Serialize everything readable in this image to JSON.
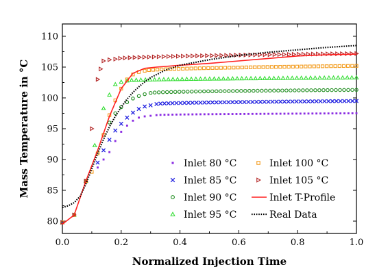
{
  "chart_data": {
    "type": "scatter",
    "xlabel": "Normalized Injection Time",
    "ylabel": "Mass Temperature in °C",
    "xlim": [
      0,
      1
    ],
    "ylim": [
      78,
      112
    ],
    "xticks": [
      0.0,
      0.2,
      0.4,
      0.6,
      0.8,
      1.0
    ],
    "xtick_labels": [
      "0.0",
      "0.2",
      "0.4",
      "0.6",
      "0.8",
      "1.0"
    ],
    "yticks": [
      80,
      85,
      90,
      95,
      100,
      105,
      110
    ],
    "ytick_labels": [
      "80",
      "85",
      "90",
      "95",
      "100",
      "105",
      "110"
    ],
    "grid": false,
    "legend_placement": "bottom-right",
    "series": [
      {
        "name": "Inlet 80 °C",
        "kind": "marker",
        "marker": "asterisk",
        "color": "#8a2be2",
        "points": [
          [
            0.0,
            79.8
          ],
          [
            0.04,
            81.0
          ],
          [
            0.08,
            86.5
          ],
          [
            0.12,
            88.7
          ],
          [
            0.14,
            90.0
          ],
          [
            0.16,
            91.2
          ],
          [
            0.18,
            93.0
          ],
          [
            0.2,
            94.5
          ],
          [
            0.22,
            95.5
          ],
          [
            0.24,
            96.3
          ],
          [
            0.26,
            96.8
          ],
          [
            0.28,
            97.0
          ],
          [
            0.3,
            97.1
          ],
          [
            0.32,
            97.2
          ]
        ],
        "plateau": {
          "x0": 0.32,
          "x1": 1.0,
          "y0": 97.2,
          "y1": 97.5
        }
      },
      {
        "name": "Inlet 85 °C",
        "kind": "marker",
        "marker": "x",
        "color": "#1f1fe0",
        "points": [
          [
            0.0,
            79.8
          ],
          [
            0.04,
            81.0
          ],
          [
            0.08,
            86.5
          ],
          [
            0.12,
            89.5
          ],
          [
            0.14,
            91.5
          ],
          [
            0.16,
            93.2
          ],
          [
            0.18,
            94.7
          ],
          [
            0.2,
            95.8
          ],
          [
            0.22,
            96.8
          ],
          [
            0.24,
            97.6
          ],
          [
            0.26,
            98.2
          ],
          [
            0.28,
            98.6
          ],
          [
            0.3,
            98.8
          ],
          [
            0.32,
            99.0
          ]
        ],
        "plateau": {
          "x0": 0.32,
          "x1": 1.0,
          "y0": 99.0,
          "y1": 99.5
        }
      },
      {
        "name": "Inlet 90 °C",
        "kind": "marker",
        "marker": "circle",
        "color": "#1e8c1e",
        "points": [
          [
            0.0,
            79.8
          ],
          [
            0.04,
            81.0
          ],
          [
            0.08,
            86.5
          ],
          [
            0.12,
            91.0
          ],
          [
            0.14,
            94.0
          ],
          [
            0.16,
            96.0
          ],
          [
            0.18,
            97.5
          ],
          [
            0.2,
            98.5
          ],
          [
            0.22,
            99.3
          ],
          [
            0.24,
            99.9
          ],
          [
            0.26,
            100.3
          ],
          [
            0.28,
            100.6
          ],
          [
            0.3,
            100.8
          ]
        ],
        "plateau": {
          "x0": 0.3,
          "x1": 1.0,
          "y0": 100.8,
          "y1": 101.3
        }
      },
      {
        "name": "Inlet 95 °C",
        "kind": "marker",
        "marker": "triangle-up",
        "color": "#33dd33",
        "points": [
          [
            0.0,
            79.8
          ],
          [
            0.04,
            81.0
          ],
          [
            0.08,
            86.5
          ],
          [
            0.11,
            92.3
          ],
          [
            0.14,
            98.3
          ],
          [
            0.16,
            100.5
          ],
          [
            0.18,
            102.2
          ],
          [
            0.2,
            102.6
          ],
          [
            0.22,
            102.8
          ]
        ],
        "plateau": {
          "x0": 0.22,
          "x1": 1.0,
          "y0": 102.8,
          "y1": 103.3
        }
      },
      {
        "name": "Inlet 100 °C",
        "kind": "marker",
        "marker": "square",
        "color": "#f39c1e",
        "points": [
          [
            0.0,
            79.8
          ],
          [
            0.04,
            81.0
          ],
          [
            0.08,
            86.5
          ],
          [
            0.1,
            88.0
          ],
          [
            0.12,
            91.0
          ],
          [
            0.14,
            94.0
          ],
          [
            0.16,
            97.2
          ],
          [
            0.18,
            99.6
          ],
          [
            0.2,
            101.5
          ],
          [
            0.22,
            103.0
          ],
          [
            0.24,
            103.8
          ],
          [
            0.26,
            104.2
          ],
          [
            0.28,
            104.4
          ]
        ],
        "plateau": {
          "x0": 0.28,
          "x1": 1.0,
          "y0": 104.4,
          "y1": 105.2
        }
      },
      {
        "name": "Inlet 105 °C",
        "kind": "marker",
        "marker": "triangle-right",
        "color": "#b22222",
        "points": [
          [
            0.0,
            79.8
          ],
          [
            0.04,
            81.0
          ],
          [
            0.08,
            86.5
          ],
          [
            0.1,
            95.0
          ],
          [
            0.12,
            103.0
          ],
          [
            0.13,
            104.7
          ],
          [
            0.14,
            106.0
          ],
          [
            0.16,
            106.2
          ],
          [
            0.18,
            106.3
          ]
        ],
        "plateau": {
          "x0": 0.18,
          "x1": 1.0,
          "y0": 106.3,
          "y1": 107.2
        }
      },
      {
        "name": "Inlet T-Profile",
        "kind": "line",
        "dash": "solid",
        "color": "#ff2020",
        "points": [
          [
            0.0,
            79.5
          ],
          [
            0.04,
            81.0
          ],
          [
            0.08,
            86.5
          ],
          [
            0.12,
            91.5
          ],
          [
            0.16,
            97.0
          ],
          [
            0.2,
            101.5
          ],
          [
            0.24,
            104.0
          ],
          [
            0.28,
            104.8
          ],
          [
            0.32,
            105.0
          ],
          [
            0.4,
            105.3
          ],
          [
            0.5,
            105.6
          ],
          [
            0.6,
            106.0
          ],
          [
            0.7,
            106.4
          ],
          [
            0.8,
            106.8
          ],
          [
            0.9,
            107.0
          ],
          [
            1.0,
            107.1
          ]
        ]
      },
      {
        "name": "Real Data",
        "kind": "line",
        "dash": "dotted",
        "color": "#000000",
        "points": [
          [
            0.0,
            82.2
          ],
          [
            0.02,
            82.5
          ],
          [
            0.04,
            83.0
          ],
          [
            0.06,
            84.0
          ],
          [
            0.08,
            86.0
          ],
          [
            0.1,
            88.5
          ],
          [
            0.12,
            91.0
          ],
          [
            0.14,
            93.3
          ],
          [
            0.16,
            95.3
          ],
          [
            0.18,
            97.0
          ],
          [
            0.2,
            98.5
          ],
          [
            0.22,
            99.8
          ],
          [
            0.24,
            100.9
          ],
          [
            0.26,
            101.8
          ],
          [
            0.28,
            102.6
          ],
          [
            0.3,
            103.3
          ],
          [
            0.35,
            104.5
          ],
          [
            0.4,
            105.3
          ],
          [
            0.5,
            106.2
          ],
          [
            0.6,
            106.9
          ],
          [
            0.7,
            107.4
          ],
          [
            0.8,
            107.8
          ],
          [
            0.9,
            108.2
          ],
          [
            1.0,
            108.5
          ]
        ]
      }
    ]
  }
}
